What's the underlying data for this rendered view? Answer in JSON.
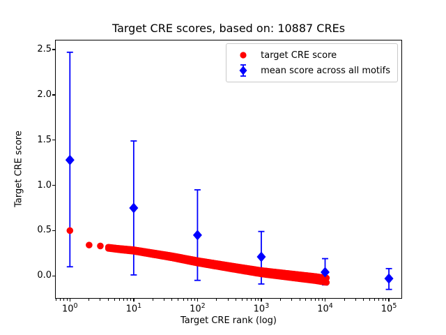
{
  "chart_data": {
    "type": "scatter",
    "title": "Target CRE scores, based on: 10887 CREs",
    "xlabel": "Target CRE rank (log)",
    "ylabel": "Target CRE score",
    "xscale": "log",
    "xlim": [
      0.6,
      157000
    ],
    "ylim": [
      -0.245,
      2.6
    ],
    "grid": false,
    "legend_position": "upper right",
    "x_ticks": [
      {
        "v": 1,
        "base": "10",
        "exp": "0"
      },
      {
        "v": 10,
        "base": "10",
        "exp": "1"
      },
      {
        "v": 100,
        "base": "10",
        "exp": "2"
      },
      {
        "v": 1000,
        "base": "10",
        "exp": "3"
      },
      {
        "v": 10000,
        "base": "10",
        "exp": "4"
      },
      {
        "v": 100000,
        "base": "10",
        "exp": "5"
      }
    ],
    "y_ticks": [
      {
        "v": 0.0,
        "label": "0.0"
      },
      {
        "v": 0.5,
        "label": "0.5"
      },
      {
        "v": 1.0,
        "label": "1.0"
      },
      {
        "v": 1.5,
        "label": "1.5"
      },
      {
        "v": 2.0,
        "label": "2.0"
      },
      {
        "v": 2.5,
        "label": "2.5"
      }
    ],
    "series": [
      {
        "name": "target CRE score",
        "color": "#ff0000",
        "marker": "circle",
        "points": [
          [
            1,
            0.5
          ],
          [
            2,
            0.34
          ],
          [
            3,
            0.33
          ]
        ],
        "band": [
          [
            4,
            0.31
          ],
          [
            6,
            0.295
          ],
          [
            10,
            0.28
          ],
          [
            20,
            0.245
          ],
          [
            40,
            0.21
          ],
          [
            100,
            0.155
          ],
          [
            200,
            0.12
          ],
          [
            400,
            0.085
          ],
          [
            1000,
            0.04
          ],
          [
            2000,
            0.015
          ],
          [
            4000,
            -0.01
          ],
          [
            7000,
            -0.03
          ],
          [
            10887,
            -0.05
          ]
        ]
      },
      {
        "name": "mean score across all motifs",
        "color": "#0000ff",
        "marker": "diamond",
        "points": [
          {
            "x": 1,
            "y": 1.28,
            "lo": 0.1,
            "hi": 2.47
          },
          {
            "x": 10,
            "y": 0.75,
            "lo": 0.01,
            "hi": 1.49
          },
          {
            "x": 100,
            "y": 0.45,
            "lo": -0.05,
            "hi": 0.95
          },
          {
            "x": 1000,
            "y": 0.21,
            "lo": -0.09,
            "hi": 0.49
          },
          {
            "x": 10000,
            "y": 0.04,
            "lo": -0.1,
            "hi": 0.19
          },
          {
            "x": 100000,
            "y": -0.03,
            "lo": -0.15,
            "hi": 0.08
          }
        ]
      }
    ]
  }
}
